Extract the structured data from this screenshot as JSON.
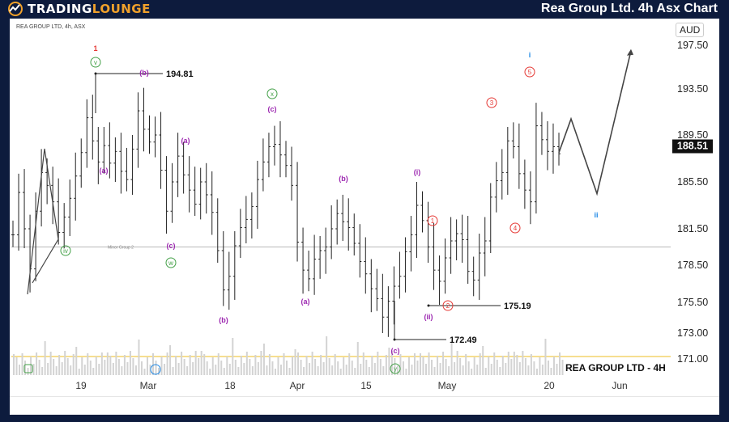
{
  "header": {
    "logo_text_1": "TRADING",
    "logo_text_2": "LOUNGE",
    "title": "Rea Group Ltd. 4h Asx Chart"
  },
  "chart_meta": {
    "source_label": "REA GROUP LTD, 4h, ASX",
    "currency": "AUD",
    "current_price": "188.51",
    "watermark": "REA GROUP LTD - 4H"
  },
  "chart_data": {
    "type": "line",
    "title": "Rea Group Ltd. 4h Asx Chart",
    "xlabel": "",
    "ylabel": "AUD",
    "x_ticks": [
      "19",
      "Mar",
      "18",
      "Apr",
      "15",
      "May",
      "20",
      "Jun"
    ],
    "y_ticks": [
      197.5,
      193.5,
      189.5,
      185.5,
      181.5,
      178.5,
      175.5,
      173.0,
      171.0
    ],
    "ylim": [
      169.5,
      199.5
    ],
    "current_price": 188.51,
    "horizontal_line": {
      "label": "Minor Group 2",
      "value": 180.0
    },
    "support_line": {
      "value": 172.0,
      "color": "#f3d36b"
    },
    "price_callouts": [
      {
        "text": "194.81",
        "value": 194.81
      },
      {
        "text": "172.49",
        "value": 172.49
      },
      {
        "text": "175.19",
        "value": 175.19
      }
    ],
    "wave_labels": [
      {
        "text": "1",
        "color": "#e53935",
        "style": "plain"
      },
      {
        "text": "v",
        "color": "#43a047",
        "style": "circle"
      },
      {
        "text": "(b)",
        "color": "#9c27b0",
        "style": "plain"
      },
      {
        "text": "(a)",
        "color": "#9c27b0",
        "style": "plain"
      },
      {
        "text": "(a)",
        "color": "#9c27b0",
        "style": "plain"
      },
      {
        "text": "(c)",
        "color": "#9c27b0",
        "style": "plain"
      },
      {
        "text": "iv",
        "color": "#43a047",
        "style": "circle"
      },
      {
        "text": "w",
        "color": "#43a047",
        "style": "circle"
      },
      {
        "text": "(b)",
        "color": "#9c27b0",
        "style": "plain"
      },
      {
        "text": "x",
        "color": "#43a047",
        "style": "circle"
      },
      {
        "text": "(c)",
        "color": "#9c27b0",
        "style": "plain"
      },
      {
        "text": "(b)",
        "color": "#9c27b0",
        "style": "plain"
      },
      {
        "text": "(a)",
        "color": "#9c27b0",
        "style": "plain"
      },
      {
        "text": "(c)",
        "color": "#9c27b0",
        "style": "plain"
      },
      {
        "text": "y",
        "color": "#43a047",
        "style": "circle"
      },
      {
        "text": "(i)",
        "color": "#9c27b0",
        "style": "plain"
      },
      {
        "text": "(ii)",
        "color": "#9c27b0",
        "style": "plain"
      },
      {
        "text": "1",
        "color": "#e53935",
        "style": "circle"
      },
      {
        "text": "2",
        "color": "#e53935",
        "style": "circle"
      },
      {
        "text": "3",
        "color": "#e53935",
        "style": "circle"
      },
      {
        "text": "4",
        "color": "#e53935",
        "style": "circle"
      },
      {
        "text": "5",
        "color": "#e53935",
        "style": "circle"
      },
      {
        "text": "i",
        "color": "#1e88e5",
        "style": "plain"
      },
      {
        "text": "ii",
        "color": "#1e88e5",
        "style": "plain"
      }
    ],
    "projection": [
      {
        "label": "start",
        "y": 188.0
      },
      {
        "label": "peak",
        "y": 190.9
      },
      {
        "label": "ii",
        "y": 184.5
      },
      {
        "label": "target",
        "y": 197.0
      }
    ],
    "ohlc_close_series": [
      181.0,
      184.6,
      181.5,
      178.2,
      183.0,
      186.3,
      185.2,
      183.8,
      181.2,
      182.5,
      184.1,
      186.0,
      188.0,
      191.0,
      189.0,
      187.2,
      188.6,
      187.1,
      188.1,
      186.4,
      185.7,
      188.3,
      191.6,
      190.0,
      188.9,
      189.5,
      186.5,
      183.0,
      185.5,
      187.7,
      186.1,
      184.8,
      183.6,
      185.5,
      184.4,
      182.9,
      179.7,
      176.5,
      177.6,
      180.1,
      181.6,
      182.3,
      183.4,
      185.7,
      187.2,
      188.5,
      188.7,
      187.8,
      186.9,
      185.2,
      180.4,
      178.1,
      177.4,
      179.0,
      179.7,
      180.0,
      181.5,
      182.8,
      182.1,
      181.6,
      180.3,
      178.8,
      177.8,
      176.6,
      175.8,
      174.3,
      175.6,
      176.8,
      177.6,
      179.6,
      181.0,
      183.5,
      182.2,
      180.0,
      178.1,
      177.2,
      179.1,
      180.5,
      181.1,
      180.6,
      178.0,
      177.3,
      179.5,
      180.5,
      184.2,
      185.6,
      186.3,
      189.0,
      188.5,
      186.2,
      184.8,
      183.8,
      190.3,
      189.1,
      188.1,
      188.5,
      187.9
    ],
    "volume_visible": true
  }
}
